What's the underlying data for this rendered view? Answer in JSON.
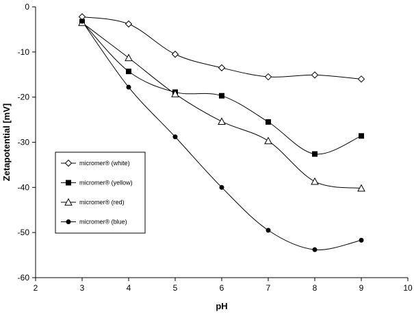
{
  "chart_data": {
    "type": "line",
    "title": "",
    "xlabel": "pH",
    "ylabel": "Zetapotential [mV]",
    "xlim": [
      2,
      10
    ],
    "ylim": [
      -60,
      0
    ],
    "x_ticks": [
      "2",
      "3",
      "4",
      "5",
      "6",
      "7",
      "8",
      "9",
      "10"
    ],
    "y_ticks": [
      "0",
      "-10",
      "-20",
      "-30",
      "-40",
      "-50",
      "-60"
    ],
    "grid": false,
    "legend_position": "left",
    "series": [
      {
        "name": "micromer® (white)",
        "marker": "open-diamond",
        "x": [
          3,
          4,
          5,
          6,
          7,
          8,
          9
        ],
        "y": [
          -2.2,
          -3.8,
          -10.5,
          -13.5,
          -15.5,
          -15.1,
          -16.0
        ]
      },
      {
        "name": "micromer® (yellow)",
        "marker": "filled-square",
        "x": [
          3,
          4,
          5,
          6,
          7,
          8,
          9
        ],
        "y": [
          -3.3,
          -14.3,
          -18.9,
          -19.7,
          -25.5,
          -32.6,
          -28.6
        ]
      },
      {
        "name": "micromer® (red)",
        "marker": "open-triangle",
        "x": [
          3,
          4,
          5,
          6,
          7,
          8,
          9
        ],
        "y": [
          -3.5,
          -11.3,
          -19.3,
          -25.4,
          -29.7,
          -38.7,
          -40.2
        ]
      },
      {
        "name": "micromer® (blue)",
        "marker": "filled-circle",
        "x": [
          3,
          4,
          5,
          6,
          7,
          8,
          9
        ],
        "y": [
          -3.2,
          -17.8,
          -28.8,
          -40.0,
          -49.5,
          -53.8,
          -51.7
        ]
      }
    ]
  }
}
